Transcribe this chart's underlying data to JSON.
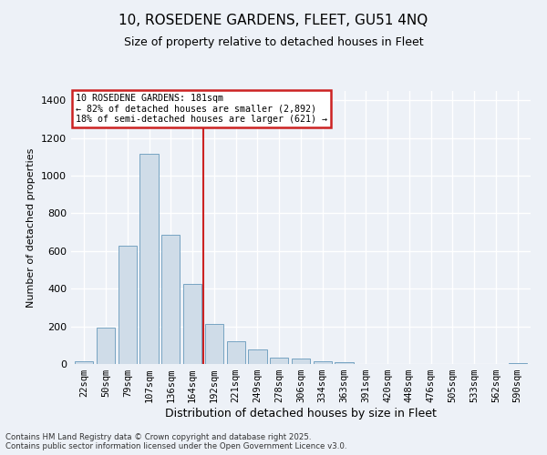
{
  "title": "10, ROSEDENE GARDENS, FLEET, GU51 4NQ",
  "subtitle": "Size of property relative to detached houses in Fleet",
  "xlabel": "Distribution of detached houses by size in Fleet",
  "ylabel": "Number of detached properties",
  "categories": [
    "22sqm",
    "50sqm",
    "79sqm",
    "107sqm",
    "136sqm",
    "164sqm",
    "192sqm",
    "221sqm",
    "249sqm",
    "278sqm",
    "306sqm",
    "334sqm",
    "363sqm",
    "391sqm",
    "420sqm",
    "448sqm",
    "476sqm",
    "505sqm",
    "533sqm",
    "562sqm",
    "590sqm"
  ],
  "values": [
    15,
    195,
    630,
    1115,
    685,
    425,
    215,
    120,
    75,
    35,
    30,
    15,
    10,
    0,
    0,
    0,
    0,
    0,
    0,
    0,
    5
  ],
  "bar_color": "#cfdce8",
  "bar_edge_color": "#6699bb",
  "reference_line_x": 5.5,
  "reference_line_color": "#cc2222",
  "annotation_text": "10 ROSEDENE GARDENS: 181sqm\n← 82% of detached houses are smaller (2,892)\n18% of semi-detached houses are larger (621) →",
  "annotation_box_color": "#cc2222",
  "ylim": [
    0,
    1450
  ],
  "yticks": [
    0,
    200,
    400,
    600,
    800,
    1000,
    1200,
    1400
  ],
  "footer_line1": "Contains HM Land Registry data © Crown copyright and database right 2025.",
  "footer_line2": "Contains public sector information licensed under the Open Government Licence v3.0.",
  "bg_color": "#edf1f7",
  "grid_color": "#ffffff",
  "title_fontsize": 11,
  "subtitle_fontsize": 9
}
